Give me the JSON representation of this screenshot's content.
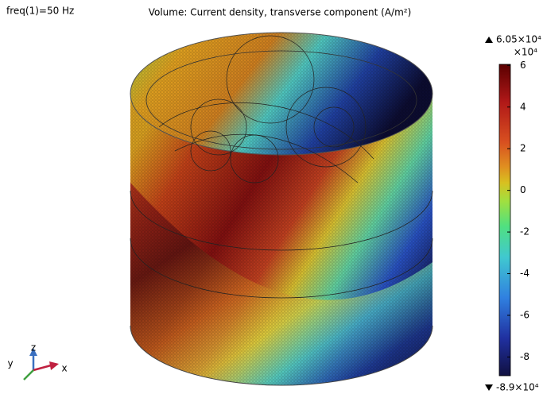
{
  "header": {
    "frequency": "freq(1)=50 Hz",
    "title": "Volume: Current density, transverse component (A/m²)"
  },
  "colorbar": {
    "max_label": "6.05×10⁴",
    "min_label": "-8.9×10⁴",
    "multiplier": "×10⁴",
    "range": [
      -8.9,
      6.05
    ],
    "ticks": [
      6,
      4,
      2,
      0,
      -2,
      -4,
      -6,
      -8
    ]
  },
  "axes_triad": {
    "x": "x",
    "y": "y",
    "z": "z"
  }
}
